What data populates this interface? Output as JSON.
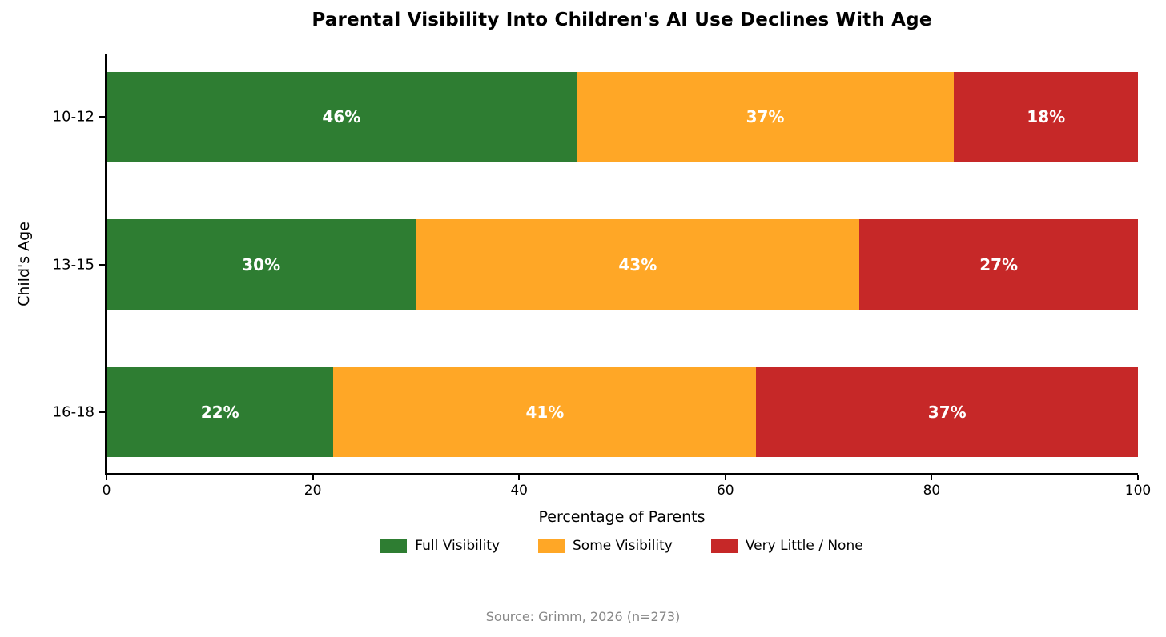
{
  "title": "Parental Visibility Into Children's AI Use Declines With Age",
  "source": "Source: Grimm, 2026 (n=273)",
  "chart_data": {
    "type": "bar",
    "orientation": "horizontal",
    "stacked": true,
    "title": "Parental Visibility Into Children's AI Use Declines With Age",
    "categories": [
      "10-12",
      "13-15",
      "16-18"
    ],
    "series": [
      {
        "name": "Full Visibility",
        "color": "#2e7d32",
        "values": [
          46,
          30,
          22
        ]
      },
      {
        "name": "Some Visibility",
        "color": "#ffa726",
        "values": [
          37,
          43,
          41
        ]
      },
      {
        "name": "Very Little / None",
        "color": "#c62828",
        "values": [
          18,
          27,
          37
        ]
      }
    ],
    "xlabel": "Percentage of Parents",
    "ylabel": "Child's Age",
    "x_ticks": [
      0,
      20,
      40,
      60,
      80,
      100
    ],
    "xlim": [
      0,
      100
    ],
    "value_label_suffix": "%",
    "legend_position": "bottom",
    "grid": false
  },
  "colors": {
    "background": "#ffffff",
    "title_text": "#000000",
    "axis": "#000000",
    "bar_value_text": "#ffffff",
    "source_text": "#888888"
  }
}
